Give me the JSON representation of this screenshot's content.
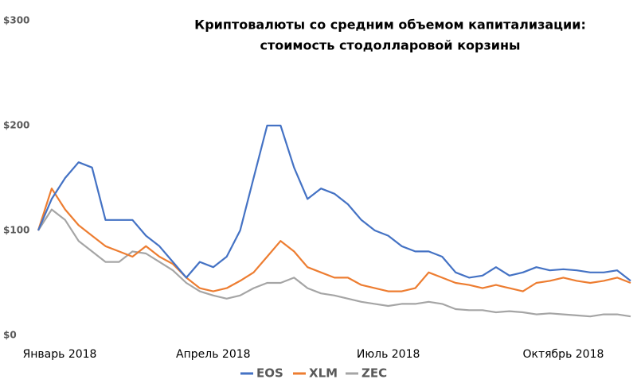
{
  "chart_data": {
    "type": "line",
    "title": [
      "Криптовалюты со средним объемом капитализации:",
      "стоимость стодолларовой корзины"
    ],
    "categories": [
      "Январь 2018",
      null,
      null,
      null,
      null,
      null,
      null,
      null,
      null,
      null,
      null,
      null,
      null,
      "Апрель 2018",
      null,
      null,
      null,
      null,
      null,
      null,
      null,
      null,
      null,
      null,
      null,
      null,
      "Июль 2018",
      null,
      null,
      null,
      null,
      null,
      null,
      null,
      null,
      null,
      null,
      null,
      null,
      "Октябрь 2018",
      null,
      null,
      null,
      null,
      null
    ],
    "series": [
      {
        "name": "EOS",
        "color": "#4472c4",
        "values": [
          100,
          130,
          150,
          165,
          160,
          110,
          110,
          110,
          95,
          85,
          70,
          55,
          70,
          65,
          75,
          100,
          150,
          200,
          200,
          160,
          130,
          140,
          135,
          125,
          110,
          100,
          95,
          85,
          80,
          80,
          75,
          60,
          55,
          57,
          65,
          57,
          60,
          65,
          62,
          63,
          62,
          60,
          60,
          62,
          52
        ]
      },
      {
        "name": "XLM",
        "color": "#ed7d31",
        "values": [
          100,
          140,
          120,
          105,
          95,
          85,
          80,
          75,
          85,
          75,
          68,
          55,
          45,
          42,
          45,
          52,
          60,
          75,
          90,
          80,
          65,
          60,
          55,
          55,
          48,
          45,
          42,
          42,
          45,
          60,
          55,
          50,
          48,
          45,
          48,
          45,
          42,
          50,
          52,
          55,
          52,
          50,
          52,
          55,
          50
        ]
      },
      {
        "name": "ZEC",
        "color": "#a5a5a5",
        "values": [
          100,
          120,
          110,
          90,
          80,
          70,
          70,
          80,
          78,
          70,
          62,
          50,
          42,
          38,
          35,
          38,
          45,
          50,
          50,
          55,
          45,
          40,
          38,
          35,
          32,
          30,
          28,
          30,
          30,
          32,
          30,
          25,
          24,
          24,
          22,
          23,
          22,
          20,
          21,
          20,
          19,
          18,
          20,
          20,
          18
        ]
      }
    ],
    "ylim": [
      0,
      300
    ],
    "yticks": [
      {
        "value": 0,
        "label": "$0"
      },
      {
        "value": 100,
        "label": "$100"
      },
      {
        "value": 200,
        "label": "$200"
      },
      {
        "value": 300,
        "label": "$300"
      }
    ],
    "grid": false,
    "legend": "bottom"
  }
}
